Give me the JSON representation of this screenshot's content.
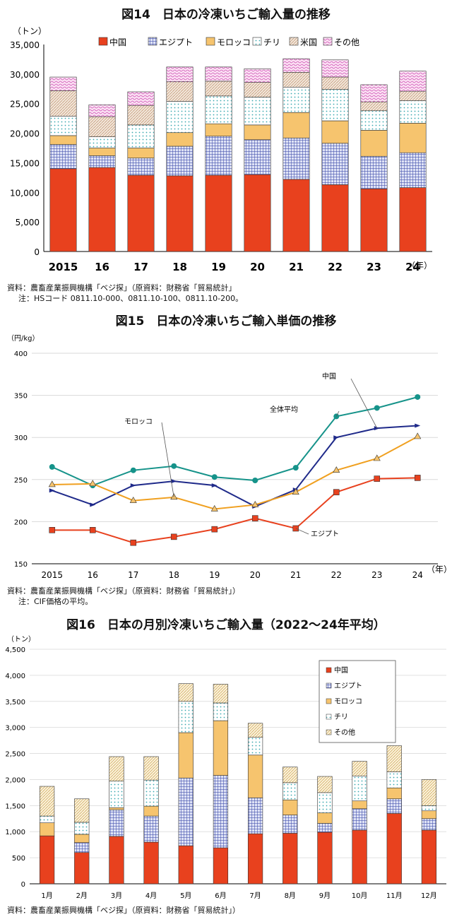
{
  "colors": {
    "china": "#e8411e",
    "egypt": "#4a57b0",
    "morocco": "#f6c46e",
    "chile": "#bfe6e6",
    "us": "#e6ccb8",
    "other": "#e36ec9",
    "other3": "#f6d999",
    "avg": "#16938a",
    "china_line": "#1f2a8a",
    "morocco_line": "#f0a020",
    "egypt_line": "#e8411e"
  },
  "fig14": {
    "title": "図14　日本の冷凍いちご輸入量の推移",
    "unit": "（トン）",
    "year_unit": "（年）",
    "source": "資料：農畜産業振興機構「ベジ探」（原資料：財務省「貿易統計」",
    "note": "注：HSコード 0811.10-000、0811.10-100、0811.10-200。",
    "chart_data": {
      "type": "bar",
      "stacked": true,
      "categories": [
        "2015",
        "16",
        "17",
        "18",
        "19",
        "20",
        "21",
        "22",
        "23",
        "24"
      ],
      "yticks": [
        "0",
        "5,000",
        "10,000",
        "15,000",
        "20,000",
        "25,000",
        "30,000",
        "35,000"
      ],
      "ylim": [
        0,
        35000
      ],
      "legend": [
        "中国",
        "エジプト",
        "モロッコ",
        "チリ",
        "米国",
        "その他"
      ],
      "series": [
        {
          "name": "中国",
          "values": [
            14000,
            14200,
            12900,
            12800,
            12900,
            13000,
            12200,
            11300,
            10600,
            10800
          ]
        },
        {
          "name": "エジプト",
          "values": [
            4100,
            2000,
            2900,
            5000,
            6600,
            5900,
            7000,
            7000,
            5500,
            5900
          ]
        },
        {
          "name": "モロッコ",
          "values": [
            1500,
            1300,
            1700,
            2300,
            2100,
            2500,
            4300,
            3800,
            4400,
            5000
          ]
        },
        {
          "name": "チリ",
          "values": [
            3300,
            1900,
            3900,
            5300,
            4700,
            4700,
            4300,
            5300,
            3300,
            3800
          ]
        },
        {
          "name": "米国",
          "values": [
            4300,
            3400,
            3300,
            3300,
            2500,
            2500,
            2500,
            2100,
            1500,
            1600
          ]
        },
        {
          "name": "その他",
          "values": [
            2300,
            2000,
            2300,
            2500,
            2400,
            2300,
            2300,
            2900,
            2900,
            3400
          ]
        }
      ]
    }
  },
  "fig15": {
    "title": "図15　日本の冷凍いちご輸入単価の推移",
    "unit": "（円/kg）",
    "year_unit": "（年）",
    "source": "資料：農畜産業振興機構「ベジ探」（原資料：財務省「貿易統計」）",
    "note": "注：CIF価格の平均。",
    "chart_data": {
      "type": "line",
      "categories": [
        "2015",
        "16",
        "17",
        "18",
        "19",
        "20",
        "21",
        "22",
        "23",
        "24"
      ],
      "yticks": [
        "150",
        "200",
        "250",
        "300",
        "350",
        "400"
      ],
      "ylim": [
        150,
        400
      ],
      "series": [
        {
          "name": "全体平均",
          "values": [
            265,
            243,
            261,
            266,
            253,
            249,
            264,
            325,
            335,
            348
          ]
        },
        {
          "name": "中国",
          "values": [
            237,
            220,
            243,
            248,
            243,
            218,
            238,
            300,
            311,
            314
          ]
        },
        {
          "name": "モロッコ",
          "values": [
            244,
            245,
            225,
            229,
            215,
            220,
            235,
            261,
            275,
            301
          ]
        },
        {
          "name": "エジプト",
          "values": [
            190,
            190,
            175,
            182,
            191,
            204,
            192,
            235,
            251,
            252
          ]
        }
      ]
    }
  },
  "fig16": {
    "title": "図16　日本の月別冷凍いちご輸入量（2022～24年平均）",
    "unit": "（トン）",
    "source": "資料：農畜産業振興機構「ベジ探」（原資料：財務省「貿易統計」）",
    "chart_data": {
      "type": "bar",
      "stacked": true,
      "categories": [
        "1月",
        "2月",
        "3月",
        "4月",
        "5月",
        "6月",
        "7月",
        "8月",
        "9月",
        "10月",
        "11月",
        "12月"
      ],
      "yticks": [
        "0",
        "500",
        "1,000",
        "1,500",
        "2,000",
        "2,500",
        "3,000",
        "3,500",
        "4,000",
        "4,500"
      ],
      "ylim": [
        0,
        4500
      ],
      "legend": [
        "中国",
        "エジプト",
        "モロッコ",
        "チリ",
        "その他"
      ],
      "series": [
        {
          "name": "中国",
          "values": [
            920,
            600,
            910,
            800,
            730,
            690,
            960,
            970,
            990,
            1030,
            1350,
            1030
          ]
        },
        {
          "name": "エジプト",
          "values": [
            0,
            190,
            510,
            500,
            1300,
            1390,
            690,
            350,
            170,
            410,
            280,
            220
          ]
        },
        {
          "name": "モロッコ",
          "values": [
            250,
            160,
            40,
            190,
            870,
            1050,
            820,
            290,
            200,
            150,
            210,
            150
          ]
        },
        {
          "name": "チリ",
          "values": [
            130,
            230,
            510,
            500,
            600,
            340,
            340,
            330,
            390,
            480,
            310,
            100
          ]
        },
        {
          "name": "その他",
          "values": [
            570,
            450,
            470,
            450,
            340,
            360,
            270,
            300,
            310,
            280,
            500,
            500
          ]
        }
      ]
    }
  }
}
